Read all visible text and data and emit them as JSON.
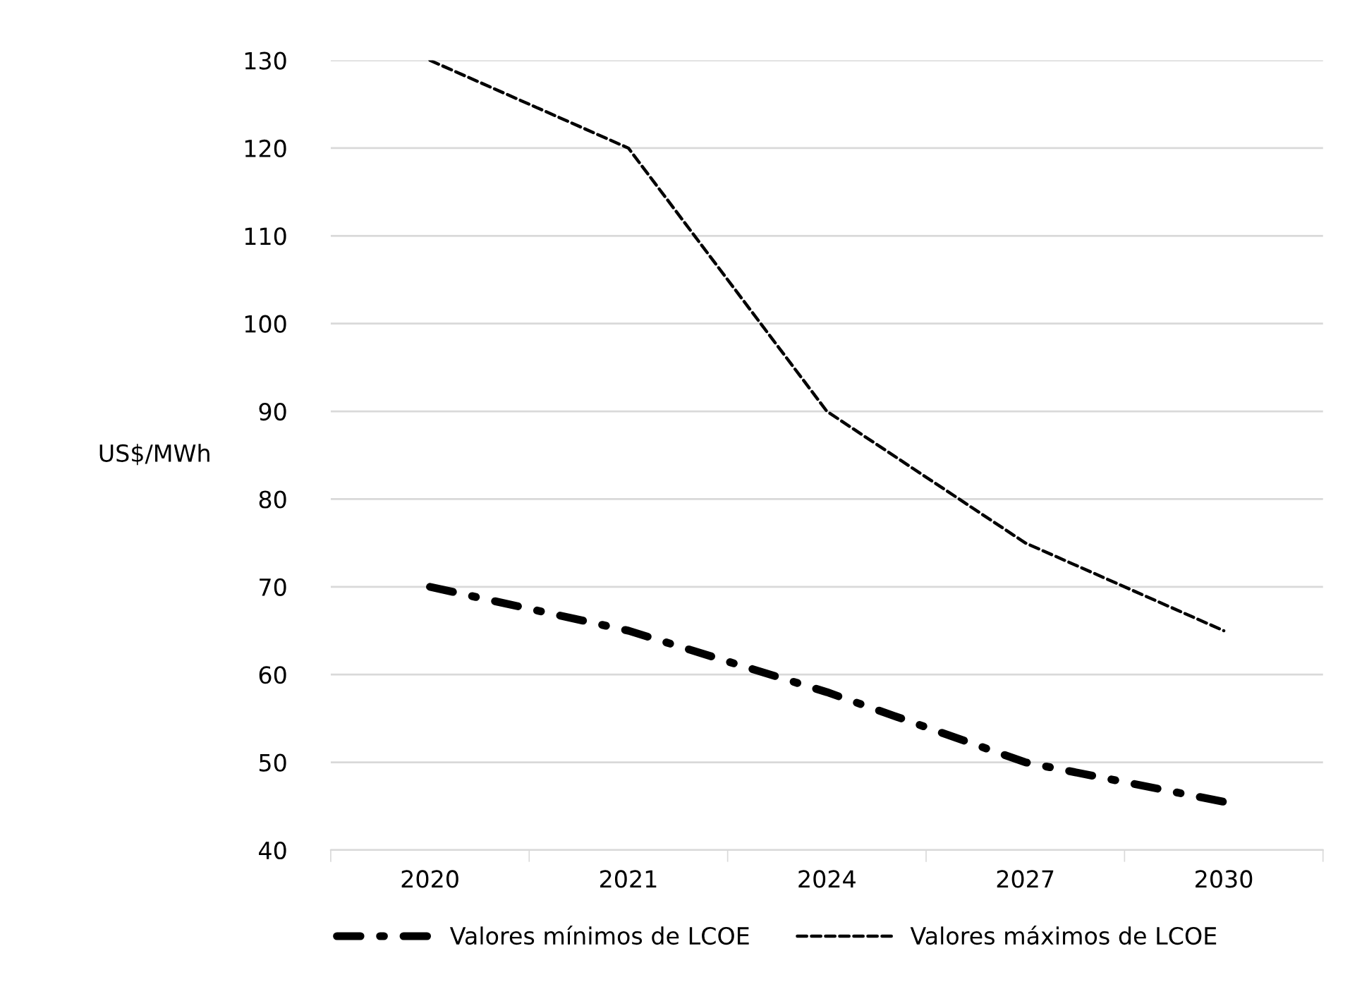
{
  "chart_data": {
    "type": "line",
    "ylabel": "US$/MWh",
    "categories": [
      "2020",
      "2021",
      "2024",
      "2027",
      "2030"
    ],
    "series": [
      {
        "name": "Valores mínimos de LCOE",
        "color": "#000000",
        "values": [
          70,
          65,
          58,
          50,
          45.5
        ],
        "line_style": "dashdot"
      },
      {
        "name": "Valores máximos de LCOE",
        "color": "#000000",
        "values": [
          130,
          120,
          90,
          75,
          65
        ],
        "line_style": "dashed"
      }
    ],
    "ylim": [
      40,
      130
    ],
    "yticks": [
      40,
      50,
      60,
      70,
      80,
      90,
      100,
      110,
      120,
      130
    ],
    "grid": "y",
    "legend": "bottom",
    "marker": "none"
  }
}
